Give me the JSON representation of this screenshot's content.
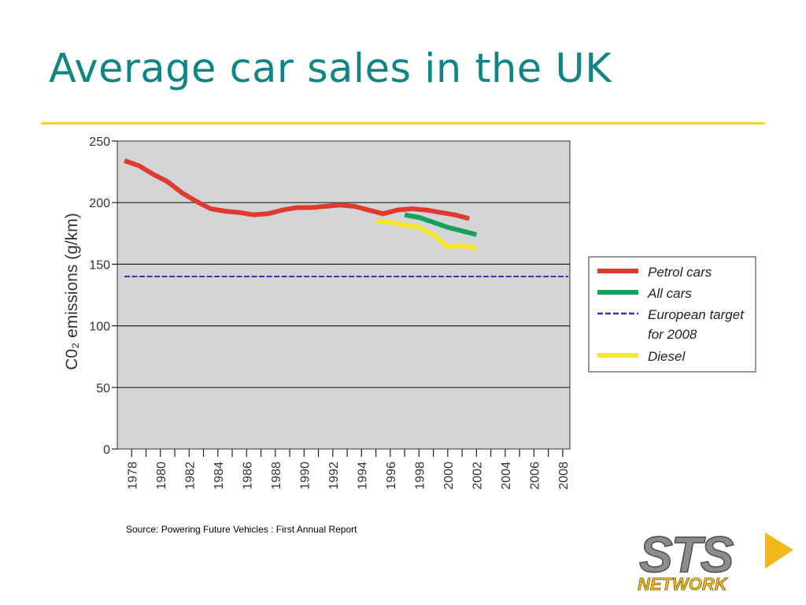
{
  "slide": {
    "title": "Average car sales in the UK",
    "source": "Source: Powering Future Vehicles : First Annual Report"
  },
  "logo": {
    "line1": "STS",
    "line2": "NETWORK"
  },
  "colors": {
    "title": "#0f8585",
    "rule": "#f2cf3a",
    "plot_bg": "#d3d4d6",
    "petrol": "#e03a30",
    "all_cars": "#14a25a",
    "target": "#2f3a99",
    "diesel": "#f7e62a"
  },
  "chart_data": {
    "type": "line",
    "ylabel": "C0₂ emissions (g/km)",
    "xlim": [
      1977,
      2008.5
    ],
    "ylim": [
      0,
      250
    ],
    "y_ticks": [
      0,
      50,
      100,
      150,
      200,
      250
    ],
    "x_tick_labels": [
      "1978",
      "1980",
      "1982",
      "1984",
      "1986",
      "1988",
      "1990",
      "1992",
      "1994",
      "1996",
      "1998",
      "2000",
      "2002",
      "2004",
      "2006",
      "2008"
    ],
    "grid": "horizontal",
    "legend_position": "right",
    "series": [
      {
        "name": "Petrol cars",
        "color": "#e03a30",
        "style": "solid",
        "width": 6,
        "x": [
          1977.5,
          1978.5,
          1979.5,
          1980.5,
          1981.5,
          1982.5,
          1983.5,
          1984.5,
          1985.5,
          1986.5,
          1987.5,
          1988.5,
          1989.5,
          1990.5,
          1991.5,
          1992.5,
          1993.5,
          1994.5,
          1995.5,
          1996.5,
          1997.5,
          1998.5,
          1999.5,
          2000.5,
          2001.5
        ],
        "y": [
          234,
          230,
          223,
          217,
          208,
          201,
          195,
          193,
          192,
          190,
          191,
          194,
          196,
          196,
          197,
          198,
          197,
          194,
          191,
          194,
          195,
          194,
          192,
          190,
          187
        ]
      },
      {
        "name": "All cars",
        "color": "#14a25a",
        "style": "solid",
        "width": 6,
        "x": [
          1997,
          1998,
          1999,
          2000,
          2001,
          2002
        ],
        "y": [
          190,
          188,
          184,
          180,
          177,
          174
        ]
      },
      {
        "name": "European target\nfor 2008",
        "color": "#2f3a99",
        "style": "dashed",
        "width": 2,
        "x": [
          1977.5,
          2008.4
        ],
        "y": [
          140,
          140
        ]
      },
      {
        "name": "Diesel",
        "color": "#f7e62a",
        "style": "solid",
        "width": 6,
        "x": [
          1995,
          1996,
          1997,
          1998,
          1999,
          2000,
          2001,
          2002
        ],
        "y": [
          185,
          184,
          182,
          180,
          174,
          164,
          165,
          163
        ]
      }
    ]
  }
}
